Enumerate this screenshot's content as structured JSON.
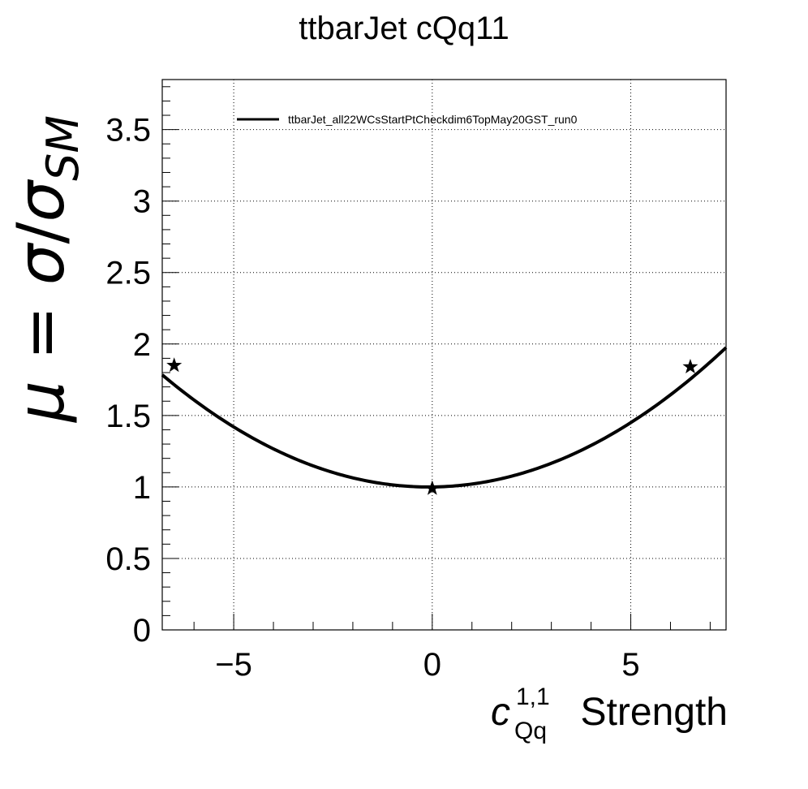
{
  "chart_data": {
    "type": "line",
    "title": "ttbarJet cQq11",
    "xlabel": {
      "symbol": "c",
      "subscript": "Qq",
      "superscript": "1,1",
      "suffix": " Strength"
    },
    "ylabel": {
      "mu": "μ",
      "equals": " = ",
      "sigma1": "σ",
      "slash": "/",
      "sigma2": "σ",
      "subscript": "SM"
    },
    "xlim": [
      -6.8,
      7.4
    ],
    "ylim": [
      0,
      3.85
    ],
    "x_ticks": [
      -5,
      0,
      5
    ],
    "x_tick_labels": [
      "−5",
      "0",
      "5"
    ],
    "y_ticks": [
      0,
      0.5,
      1,
      1.5,
      2,
      2.5,
      3,
      3.5
    ],
    "y_tick_labels": [
      "0",
      "0.5",
      "1",
      "1.5",
      "2",
      "2.5",
      "3",
      "3.5"
    ],
    "grid": true,
    "legend_position": "top",
    "series": [
      {
        "name": "ttbarJet_all22WCsStartPtCheckdim6TopMay20GST_run0",
        "kind": "fit-curve",
        "quadratic": {
          "a": 0.0174,
          "b": 0.003,
          "c": 1.0
        },
        "color": "#000000"
      },
      {
        "kind": "markers",
        "marker": "star",
        "x": [
          -6.5,
          0,
          6.5
        ],
        "y": [
          1.85,
          0.99,
          1.84
        ],
        "color": "#000000"
      }
    ]
  }
}
